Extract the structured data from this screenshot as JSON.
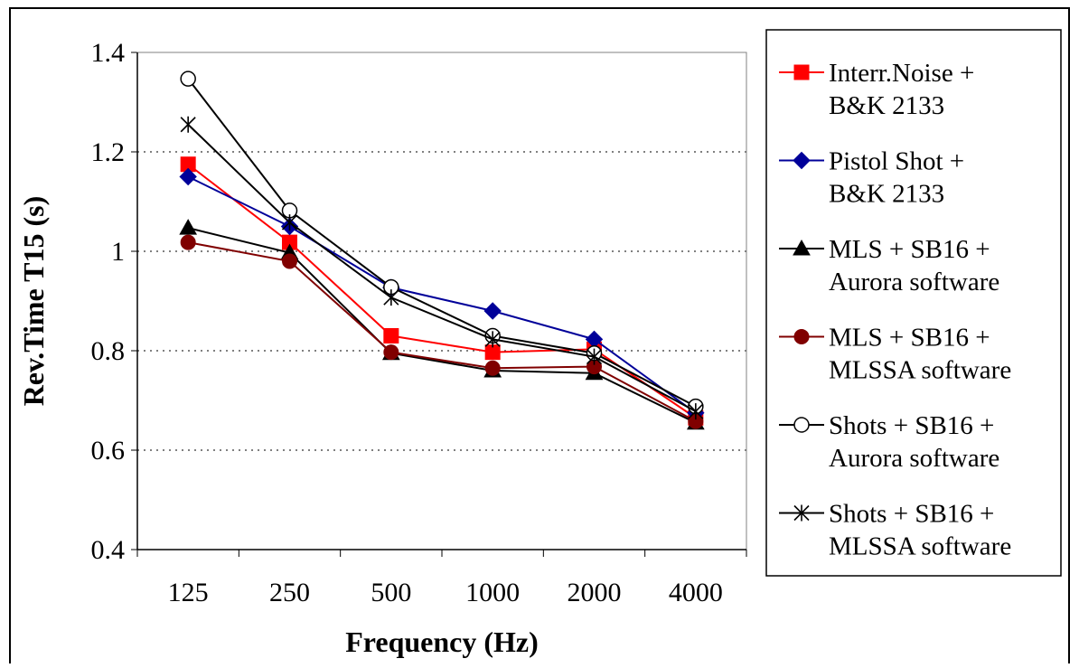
{
  "chart_data": {
    "type": "line",
    "title": "",
    "xlabel": "Frequency (Hz)",
    "ylabel": "Rev.Time T15 (s)",
    "categories": [
      "125",
      "250",
      "500",
      "1000",
      "2000",
      "4000"
    ],
    "ylim": [
      0.4,
      1.4
    ],
    "yticks": [
      "0.4",
      "0.6",
      "0.8",
      "1",
      "1.2",
      "1.4"
    ],
    "grid": "horizontal dotted",
    "legend_position": "right",
    "series": [
      {
        "name_lines": [
          "Interr.Noise +",
          "B&K 2133"
        ],
        "color": "#ff0000",
        "marker": "square",
        "values": [
          1.175,
          1.018,
          0.83,
          0.797,
          0.803,
          0.665
        ]
      },
      {
        "name_lines": [
          "Pistol Shot +",
          "B&K 2133"
        ],
        "color": "#000099",
        "marker": "diamond",
        "values": [
          1.15,
          1.05,
          0.927,
          0.88,
          0.823,
          0.675
        ]
      },
      {
        "name_lines": [
          "MLS + SB16 +",
          "Aurora software"
        ],
        "color": "#000000",
        "marker": "triangle",
        "values": [
          1.047,
          0.997,
          0.795,
          0.76,
          0.755,
          0.655
        ]
      },
      {
        "name_lines": [
          "MLS + SB16 +",
          "MLSSA software"
        ],
        "color": "#800000",
        "marker": "circle",
        "values": [
          1.018,
          0.98,
          0.797,
          0.765,
          0.768,
          0.658
        ]
      },
      {
        "name_lines": [
          "Shots + SB16 +",
          "Aurora software"
        ],
        "color": "#000000",
        "marker": "open-circle",
        "values": [
          1.347,
          1.082,
          0.928,
          0.83,
          0.795,
          0.688
        ]
      },
      {
        "name_lines": [
          "Shots + SB16 +",
          "MLSSA software"
        ],
        "color": "#000000",
        "marker": "asterisk",
        "values": [
          1.255,
          1.058,
          0.907,
          0.823,
          0.788,
          0.678
        ]
      }
    ]
  }
}
